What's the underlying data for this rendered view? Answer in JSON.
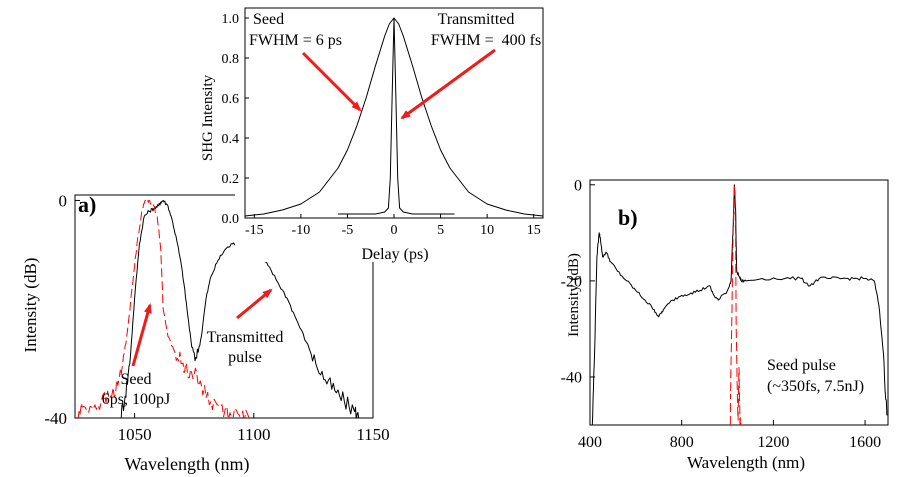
{
  "colors": {
    "black": "#000000",
    "red": "#ff0000",
    "arrow": "#ee1c1c"
  },
  "chart_data": [
    {
      "id": "inset",
      "type": "line",
      "xlabel": "Delay (ps)",
      "ylabel": "SHG Intensity",
      "xlim": [
        -16,
        16
      ],
      "ylim": [
        0,
        1.05
      ],
      "xticks": [
        -15,
        -10,
        -5,
        0,
        5,
        10,
        15
      ],
      "yticks": [
        0.0,
        0.2,
        0.4,
        0.6,
        0.8,
        1.0
      ],
      "ytick_labels": [
        "0.0",
        "0.2",
        "0.4",
        "0.6",
        "0.8",
        "1.0"
      ],
      "series": [
        {
          "name": "Seed",
          "fwhm_ps": 6,
          "color": "#000000",
          "style": "solid",
          "x": [
            -16,
            -14,
            -12,
            -10,
            -8,
            -6,
            -5,
            -4,
            -3,
            -2,
            -1,
            -0.5,
            0,
            0.5,
            1,
            2,
            3,
            4,
            5,
            6,
            8,
            10,
            12,
            14,
            16
          ],
          "y": [
            0.01,
            0.02,
            0.04,
            0.07,
            0.13,
            0.25,
            0.34,
            0.46,
            0.6,
            0.76,
            0.91,
            0.97,
            1.0,
            0.97,
            0.91,
            0.76,
            0.6,
            0.46,
            0.34,
            0.25,
            0.13,
            0.07,
            0.04,
            0.02,
            0.01
          ]
        },
        {
          "name": "Transmitted",
          "fwhm_ps": 0.4,
          "color": "#000000",
          "style": "solid",
          "x": [
            -6,
            -4,
            -2,
            -1,
            -0.6,
            -0.4,
            -0.2,
            0,
            0.2,
            0.4,
            0.6,
            1,
            2,
            4,
            6.5
          ],
          "y": [
            0.02,
            0.02,
            0.02,
            0.03,
            0.05,
            0.2,
            0.6,
            1.0,
            0.6,
            0.2,
            0.05,
            0.03,
            0.02,
            0.02,
            0.02
          ]
        }
      ],
      "annotations": [
        {
          "id": "seed_label",
          "lines": [
            "Seed",
            "FWHM = 6 ps"
          ]
        },
        {
          "id": "trans_label",
          "lines": [
            "Transmitted",
            "FWHM =  400 fs"
          ]
        }
      ]
    },
    {
      "id": "a",
      "panel_label": "a)",
      "type": "line",
      "xlabel": "Wavelength (nm)",
      "ylabel": "Intensity (dB)",
      "xlim": [
        1025,
        1150
      ],
      "ylim": [
        -40,
        1
      ],
      "xticks": [
        1050,
        1100,
        1150
      ],
      "yticks": [
        -40,
        0
      ],
      "ytick_labels": [
        "-40",
        "0"
      ],
      "series": [
        {
          "name": "Transmitted pulse",
          "color": "#000000",
          "style": "solid",
          "x": [
            1044,
            1046,
            1048,
            1050,
            1052,
            1054,
            1056,
            1058,
            1060,
            1061,
            1062,
            1064,
            1066,
            1068,
            1070,
            1072,
            1074,
            1076,
            1078,
            1080,
            1082,
            1085,
            1088,
            1091,
            1094,
            1097,
            1100,
            1103,
            1106,
            1110,
            1114,
            1118,
            1122,
            1126,
            1130,
            1134,
            1138,
            1142,
            1144
          ],
          "y": [
            -40,
            -36,
            -30,
            -18,
            -8,
            -3,
            -2,
            -1.5,
            -1,
            -0.3,
            0,
            -1,
            -4,
            -8,
            -13,
            -20,
            -27,
            -29,
            -25,
            -18,
            -14,
            -11,
            -9,
            -8,
            -7.8,
            -8.5,
            -9,
            -10.5,
            -12,
            -15,
            -18,
            -22,
            -26,
            -30,
            -33,
            -35,
            -37,
            -38.5,
            -40
          ]
        },
        {
          "name": "Seed",
          "color": "#ff0000",
          "style": "dashed",
          "x": [
            1026,
            1028,
            1032,
            1036,
            1040,
            1043,
            1045,
            1047,
            1049,
            1051,
            1053,
            1054.5,
            1056,
            1058,
            1059.5,
            1061,
            1062,
            1064,
            1067,
            1070,
            1072,
            1075,
            1078,
            1082,
            1086,
            1090,
            1094,
            1098
          ],
          "y": [
            -40,
            -38,
            -38,
            -37,
            -36,
            -34,
            -30,
            -24,
            -16,
            -8,
            -2,
            0,
            0,
            -1,
            -3,
            -9,
            -20,
            -25,
            -28,
            -30,
            -31,
            -32,
            -34,
            -37,
            -38,
            -39,
            -39.5,
            -40
          ]
        }
      ],
      "annotations": [
        {
          "id": "seed_note",
          "lines": [
            "Seed",
            "6ps, 100pJ"
          ]
        },
        {
          "id": "trans_note",
          "lines": [
            "Transmitted",
            "pulse"
          ]
        }
      ]
    },
    {
      "id": "b",
      "panel_label": "b)",
      "type": "line",
      "xlabel": "Wavelength (nm)",
      "ylabel": "Intensity (dB)",
      "xlim": [
        400,
        1700
      ],
      "ylim": [
        -50,
        1
      ],
      "xticks": [
        400,
        800,
        1200,
        1600
      ],
      "yticks": [
        -40,
        -20,
        0
      ],
      "ytick_labels": [
        "-40",
        "-20",
        "0"
      ],
      "series": [
        {
          "name": "Transmitted",
          "color": "#000000",
          "style": "solid",
          "x": [
            410,
            420,
            430,
            440,
            445,
            455,
            470,
            490,
            520,
            560,
            600,
            640,
            680,
            700,
            720,
            760,
            800,
            840,
            880,
            920,
            940,
            960,
            1000,
            1015,
            1025,
            1030,
            1035,
            1040,
            1050,
            1060,
            1080,
            1150,
            1250,
            1320,
            1360,
            1400,
            1450,
            1500,
            1550,
            1600,
            1640,
            1660,
            1680,
            1695
          ],
          "y": [
            -50,
            -35,
            -15,
            -10,
            -11,
            -15,
            -14,
            -16,
            -18,
            -20,
            -22,
            -24,
            -26,
            -27.5,
            -26,
            -24,
            -23,
            -22.5,
            -22,
            -21,
            -23,
            -24,
            -22,
            -20,
            -8,
            0,
            -5,
            -18,
            -19,
            -20,
            -20,
            -19.5,
            -19.5,
            -19.5,
            -21,
            -19.5,
            -19.5,
            -19.5,
            -19.5,
            -19.5,
            -20,
            -25,
            -35,
            -48
          ]
        },
        {
          "name": "Seed pulse",
          "color": "#ff0000",
          "style": "dashed",
          "x": [
            1012,
            1014,
            1018,
            1022,
            1025,
            1028,
            1030,
            1032,
            1035,
            1038,
            1042,
            1046,
            1050,
            1054,
            1058
          ],
          "y": [
            -50,
            -40,
            -30,
            -18,
            -8,
            -2,
            0,
            -2,
            -10,
            -30,
            -42,
            -49,
            -38,
            -49,
            -50
          ]
        }
      ],
      "annotations": [
        {
          "id": "seed_pulse_note",
          "lines": [
            "Seed pulse",
            "(~350fs, 7.5nJ)"
          ]
        }
      ]
    }
  ]
}
